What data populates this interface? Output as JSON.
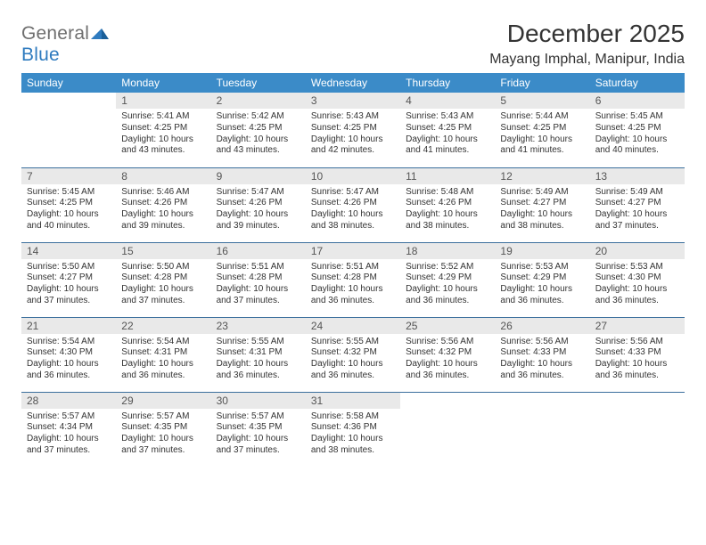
{
  "logo": {
    "general": "General",
    "blue": "Blue"
  },
  "colors": {
    "header_bg": "#3b8bc8",
    "header_fg": "#ffffff",
    "daynum_bg": "#e9e9e9",
    "daynum_fg": "#555555",
    "rule": "#3b6f9d",
    "logo_gray": "#6f6f6f",
    "logo_blue": "#2f7bbf",
    "text": "#333333",
    "page_bg": "#ffffff"
  },
  "title": "December 2025",
  "location": "Mayang Imphal, Manipur, India",
  "weekdays": [
    "Sunday",
    "Monday",
    "Tuesday",
    "Wednesday",
    "Thursday",
    "Friday",
    "Saturday"
  ],
  "weeks": [
    [
      {
        "n": "",
        "sr": "",
        "ss": "",
        "dl": ""
      },
      {
        "n": "1",
        "sr": "Sunrise: 5:41 AM",
        "ss": "Sunset: 4:25 PM",
        "dl": "Daylight: 10 hours and 43 minutes."
      },
      {
        "n": "2",
        "sr": "Sunrise: 5:42 AM",
        "ss": "Sunset: 4:25 PM",
        "dl": "Daylight: 10 hours and 43 minutes."
      },
      {
        "n": "3",
        "sr": "Sunrise: 5:43 AM",
        "ss": "Sunset: 4:25 PM",
        "dl": "Daylight: 10 hours and 42 minutes."
      },
      {
        "n": "4",
        "sr": "Sunrise: 5:43 AM",
        "ss": "Sunset: 4:25 PM",
        "dl": "Daylight: 10 hours and 41 minutes."
      },
      {
        "n": "5",
        "sr": "Sunrise: 5:44 AM",
        "ss": "Sunset: 4:25 PM",
        "dl": "Daylight: 10 hours and 41 minutes."
      },
      {
        "n": "6",
        "sr": "Sunrise: 5:45 AM",
        "ss": "Sunset: 4:25 PM",
        "dl": "Daylight: 10 hours and 40 minutes."
      }
    ],
    [
      {
        "n": "7",
        "sr": "Sunrise: 5:45 AM",
        "ss": "Sunset: 4:25 PM",
        "dl": "Daylight: 10 hours and 40 minutes."
      },
      {
        "n": "8",
        "sr": "Sunrise: 5:46 AM",
        "ss": "Sunset: 4:26 PM",
        "dl": "Daylight: 10 hours and 39 minutes."
      },
      {
        "n": "9",
        "sr": "Sunrise: 5:47 AM",
        "ss": "Sunset: 4:26 PM",
        "dl": "Daylight: 10 hours and 39 minutes."
      },
      {
        "n": "10",
        "sr": "Sunrise: 5:47 AM",
        "ss": "Sunset: 4:26 PM",
        "dl": "Daylight: 10 hours and 38 minutes."
      },
      {
        "n": "11",
        "sr": "Sunrise: 5:48 AM",
        "ss": "Sunset: 4:26 PM",
        "dl": "Daylight: 10 hours and 38 minutes."
      },
      {
        "n": "12",
        "sr": "Sunrise: 5:49 AM",
        "ss": "Sunset: 4:27 PM",
        "dl": "Daylight: 10 hours and 38 minutes."
      },
      {
        "n": "13",
        "sr": "Sunrise: 5:49 AM",
        "ss": "Sunset: 4:27 PM",
        "dl": "Daylight: 10 hours and 37 minutes."
      }
    ],
    [
      {
        "n": "14",
        "sr": "Sunrise: 5:50 AM",
        "ss": "Sunset: 4:27 PM",
        "dl": "Daylight: 10 hours and 37 minutes."
      },
      {
        "n": "15",
        "sr": "Sunrise: 5:50 AM",
        "ss": "Sunset: 4:28 PM",
        "dl": "Daylight: 10 hours and 37 minutes."
      },
      {
        "n": "16",
        "sr": "Sunrise: 5:51 AM",
        "ss": "Sunset: 4:28 PM",
        "dl": "Daylight: 10 hours and 37 minutes."
      },
      {
        "n": "17",
        "sr": "Sunrise: 5:51 AM",
        "ss": "Sunset: 4:28 PM",
        "dl": "Daylight: 10 hours and 36 minutes."
      },
      {
        "n": "18",
        "sr": "Sunrise: 5:52 AM",
        "ss": "Sunset: 4:29 PM",
        "dl": "Daylight: 10 hours and 36 minutes."
      },
      {
        "n": "19",
        "sr": "Sunrise: 5:53 AM",
        "ss": "Sunset: 4:29 PM",
        "dl": "Daylight: 10 hours and 36 minutes."
      },
      {
        "n": "20",
        "sr": "Sunrise: 5:53 AM",
        "ss": "Sunset: 4:30 PM",
        "dl": "Daylight: 10 hours and 36 minutes."
      }
    ],
    [
      {
        "n": "21",
        "sr": "Sunrise: 5:54 AM",
        "ss": "Sunset: 4:30 PM",
        "dl": "Daylight: 10 hours and 36 minutes."
      },
      {
        "n": "22",
        "sr": "Sunrise: 5:54 AM",
        "ss": "Sunset: 4:31 PM",
        "dl": "Daylight: 10 hours and 36 minutes."
      },
      {
        "n": "23",
        "sr": "Sunrise: 5:55 AM",
        "ss": "Sunset: 4:31 PM",
        "dl": "Daylight: 10 hours and 36 minutes."
      },
      {
        "n": "24",
        "sr": "Sunrise: 5:55 AM",
        "ss": "Sunset: 4:32 PM",
        "dl": "Daylight: 10 hours and 36 minutes."
      },
      {
        "n": "25",
        "sr": "Sunrise: 5:56 AM",
        "ss": "Sunset: 4:32 PM",
        "dl": "Daylight: 10 hours and 36 minutes."
      },
      {
        "n": "26",
        "sr": "Sunrise: 5:56 AM",
        "ss": "Sunset: 4:33 PM",
        "dl": "Daylight: 10 hours and 36 minutes."
      },
      {
        "n": "27",
        "sr": "Sunrise: 5:56 AM",
        "ss": "Sunset: 4:33 PM",
        "dl": "Daylight: 10 hours and 36 minutes."
      }
    ],
    [
      {
        "n": "28",
        "sr": "Sunrise: 5:57 AM",
        "ss": "Sunset: 4:34 PM",
        "dl": "Daylight: 10 hours and 37 minutes."
      },
      {
        "n": "29",
        "sr": "Sunrise: 5:57 AM",
        "ss": "Sunset: 4:35 PM",
        "dl": "Daylight: 10 hours and 37 minutes."
      },
      {
        "n": "30",
        "sr": "Sunrise: 5:57 AM",
        "ss": "Sunset: 4:35 PM",
        "dl": "Daylight: 10 hours and 37 minutes."
      },
      {
        "n": "31",
        "sr": "Sunrise: 5:58 AM",
        "ss": "Sunset: 4:36 PM",
        "dl": "Daylight: 10 hours and 38 minutes."
      },
      {
        "n": "",
        "sr": "",
        "ss": "",
        "dl": ""
      },
      {
        "n": "",
        "sr": "",
        "ss": "",
        "dl": ""
      },
      {
        "n": "",
        "sr": "",
        "ss": "",
        "dl": ""
      }
    ]
  ]
}
